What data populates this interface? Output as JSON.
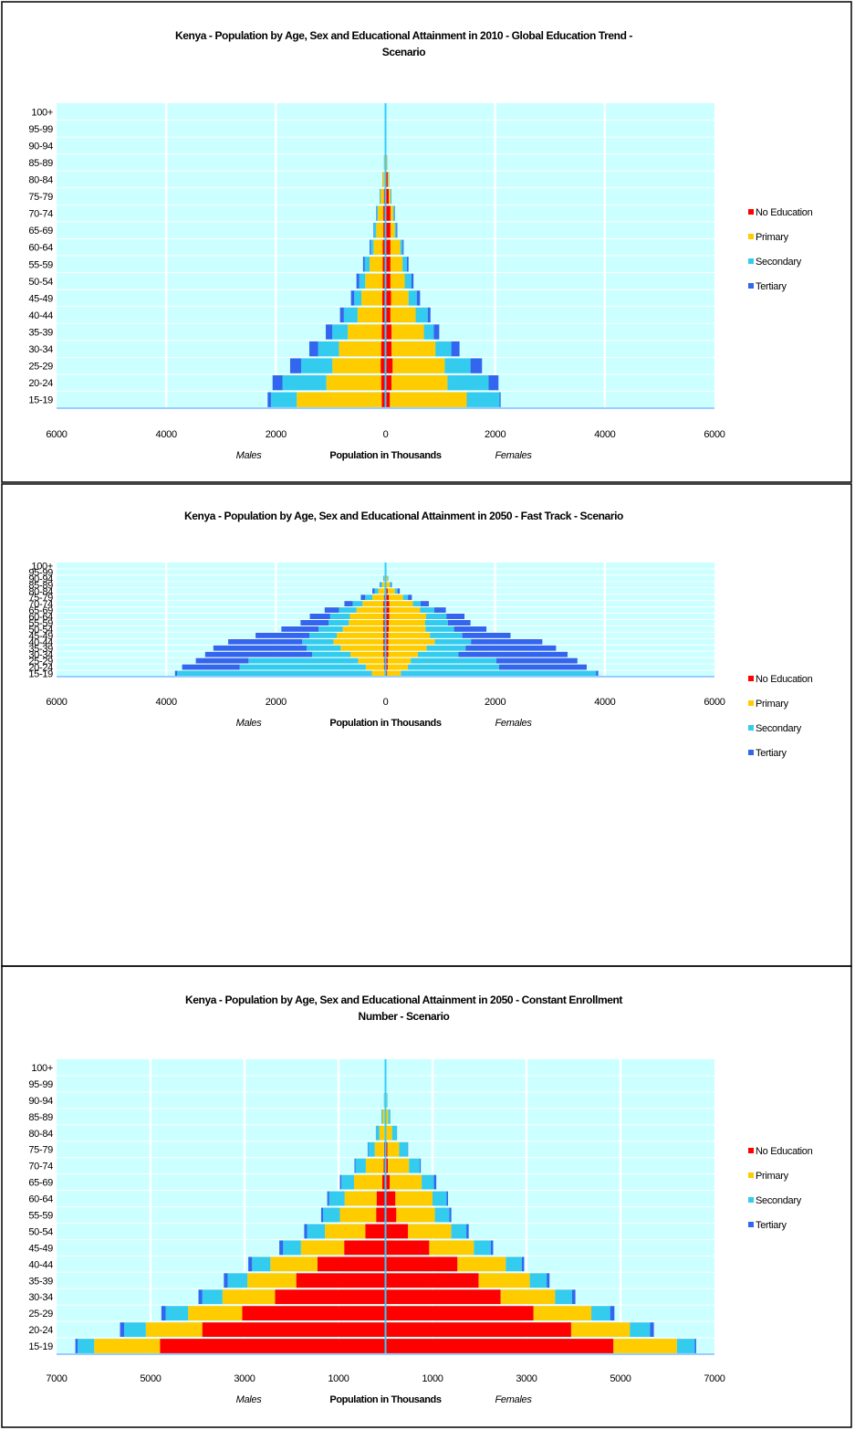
{
  "legend": [
    {
      "name": "No Education",
      "color": "#ff0000"
    },
    {
      "name": "Primary",
      "color": "#ffcc00"
    },
    {
      "name": "Secondary",
      "color": "#33ccee"
    },
    {
      "name": "Tertiary",
      "color": "#3366ee"
    }
  ],
  "chart_data": [
    {
      "type": "bar",
      "title_lines": [
        "Kenya - Population by Age, Sex and Educational Attainment  in 2010 - Global Education Trend -",
        "Scenario"
      ],
      "xlabel": "Population in Thousands",
      "left_label": "Males",
      "right_label": "Females",
      "xlim": [
        -6000,
        6000
      ],
      "xticks": [
        -6000,
        -4000,
        -2000,
        0,
        2000,
        4000,
        6000
      ],
      "xtick_labels": [
        "6000",
        "4000",
        "2000",
        "0",
        "2000",
        "4000",
        "6000"
      ],
      "categories": [
        "15-19",
        "20-24",
        "25-29",
        "30-34",
        "35-39",
        "40-44",
        "45-49",
        "50-54",
        "55-59",
        "60-64",
        "65-69",
        "70-74",
        "75-79",
        "80-84",
        "85-89",
        "90-94",
        "95-99",
        "100+"
      ],
      "males": {
        "No Education": [
          70,
          80,
          90,
          80,
          70,
          60,
          60,
          50,
          50,
          50,
          40,
          40,
          30,
          20,
          10,
          5,
          2,
          1
        ],
        "Primary": [
          1550,
          1000,
          880,
          770,
          620,
          450,
          380,
          320,
          240,
          170,
          130,
          100,
          60,
          30,
          15,
          5,
          2,
          1
        ],
        "Secondary": [
          470,
          800,
          570,
          380,
          280,
          250,
          130,
          110,
          90,
          50,
          40,
          20,
          10,
          5,
          3,
          1,
          0,
          0
        ],
        "Tertiary": [
          60,
          180,
          200,
          160,
          120,
          70,
          60,
          50,
          30,
          20,
          10,
          10,
          5,
          2,
          1,
          0,
          0,
          0
        ]
      },
      "females": {
        "No Education": [
          80,
          110,
          130,
          110,
          110,
          90,
          100,
          90,
          90,
          90,
          90,
          90,
          60,
          40,
          20,
          8,
          3,
          1
        ],
        "Primary": [
          1400,
          1020,
          950,
          800,
          590,
          460,
          320,
          260,
          220,
          180,
          80,
          50,
          30,
          20,
          10,
          5,
          2,
          1
        ],
        "Secondary": [
          600,
          750,
          470,
          290,
          180,
          220,
          150,
          120,
          80,
          40,
          30,
          20,
          10,
          5,
          3,
          1,
          0,
          0
        ],
        "Tertiary": [
          20,
          180,
          210,
          150,
          100,
          50,
          60,
          40,
          30,
          20,
          15,
          10,
          5,
          2,
          1,
          0,
          0,
          0
        ]
      }
    },
    {
      "type": "bar",
      "title_lines": [
        "Kenya - Population by Age, Sex and Educational Attainment  in 2050 - Fast Track - Scenario"
      ],
      "xlabel": "Population in Thousands",
      "left_label": "Males",
      "right_label": "Females",
      "xlim": [
        -6000,
        6000
      ],
      "xticks": [
        -6000,
        -4000,
        -2000,
        0,
        2000,
        4000,
        6000
      ],
      "xtick_labels": [
        "6000",
        "4000",
        "2000",
        "0",
        "2000",
        "4000",
        "6000"
      ],
      "categories": [
        "15-19",
        "20-24",
        "25-29",
        "30-34",
        "35-39",
        "40-44",
        "45-49",
        "50-54",
        "55-59",
        "60-64",
        "65-69",
        "70-74",
        "75-79",
        "80-84",
        "85-89",
        "90-94",
        "95-99",
        "100+"
      ],
      "males": {
        "No Education": [
          20,
          30,
          30,
          40,
          40,
          40,
          40,
          40,
          40,
          40,
          40,
          40,
          30,
          20,
          10,
          5,
          2,
          1
        ],
        "Primary": [
          230,
          330,
          470,
          600,
          780,
          910,
          850,
          740,
          630,
          610,
          490,
          380,
          210,
          110,
          50,
          20,
          8,
          2
        ],
        "Secondary": [
          3550,
          2300,
          2000,
          700,
          620,
          570,
          500,
          440,
          370,
          360,
          320,
          180,
          130,
          70,
          30,
          10,
          3,
          1
        ],
        "Tertiary": [
          40,
          1050,
          960,
          1950,
          1700,
          1350,
          980,
          680,
          510,
          370,
          260,
          150,
          80,
          40,
          15,
          5,
          2,
          0
        ]
      },
      "females": {
        "No Education": [
          30,
          40,
          40,
          50,
          50,
          50,
          50,
          60,
          60,
          70,
          70,
          70,
          60,
          40,
          20,
          8,
          3,
          1
        ],
        "Primary": [
          250,
          370,
          420,
          540,
          700,
          850,
          760,
          670,
          660,
          670,
          560,
          430,
          260,
          130,
          60,
          25,
          10,
          2
        ],
        "Secondary": [
          3560,
          1660,
          1560,
          740,
          710,
          660,
          590,
          520,
          420,
          370,
          260,
          140,
          90,
          50,
          20,
          8,
          3,
          1
        ],
        "Tertiary": [
          40,
          1600,
          1480,
          1990,
          1650,
          1300,
          880,
          590,
          410,
          330,
          210,
          150,
          70,
          40,
          15,
          5,
          2,
          0
        ]
      }
    },
    {
      "type": "bar",
      "title_lines": [
        "Kenya - Population by Age, Sex and Educational Attainment  in 2050 - Constant Enrollment",
        "Number - Scenario"
      ],
      "xlabel": "Population in Thousands",
      "left_label": "Males",
      "right_label": "Females",
      "xlim": [
        -7000,
        7000
      ],
      "xticks": [
        -7000,
        -5000,
        -3000,
        -1000,
        1000,
        3000,
        5000,
        7000
      ],
      "xtick_labels": [
        "7000",
        "5000",
        "3000",
        "1000",
        "1000",
        "3000",
        "5000",
        "7000"
      ],
      "categories": [
        "15-19",
        "20-24",
        "25-29",
        "30-34",
        "35-39",
        "40-44",
        "45-49",
        "50-54",
        "55-59",
        "60-64",
        "65-69",
        "70-74",
        "75-79",
        "80-84",
        "85-89",
        "90-94",
        "95-99",
        "100+"
      ],
      "males": {
        "No Education": [
          4800,
          3900,
          3050,
          2350,
          1900,
          1450,
          880,
          430,
          200,
          190,
          70,
          40,
          30,
          20,
          10,
          5,
          2,
          1
        ],
        "Primary": [
          1400,
          1200,
          1150,
          1120,
          1040,
          1000,
          920,
          860,
          770,
          680,
          600,
          380,
          200,
          110,
          50,
          20,
          8,
          2
        ],
        "Secondary": [
          350,
          460,
          480,
          430,
          420,
          390,
          380,
          380,
          360,
          330,
          270,
          220,
          140,
          70,
          25,
          10,
          3,
          1
        ],
        "Tertiary": [
          50,
          90,
          90,
          80,
          80,
          80,
          80,
          60,
          40,
          40,
          30,
          20,
          10,
          5,
          2,
          0,
          0,
          0
        ]
      },
      "females": {
        "No Education": [
          4850,
          3950,
          3150,
          2450,
          1980,
          1530,
          930,
          480,
          230,
          210,
          90,
          50,
          40,
          20,
          10,
          5,
          2,
          1
        ],
        "Primary": [
          1350,
          1250,
          1230,
          1160,
          1090,
          1030,
          950,
          920,
          820,
          790,
          680,
          450,
          250,
          120,
          50,
          20,
          8,
          2
        ],
        "Secondary": [
          380,
          430,
          400,
          360,
          360,
          340,
          360,
          320,
          310,
          300,
          260,
          230,
          180,
          100,
          40,
          15,
          5,
          1
        ],
        "Tertiary": [
          30,
          80,
          90,
          70,
          60,
          50,
          50,
          50,
          40,
          30,
          50,
          20,
          10,
          5,
          2,
          0,
          0,
          0
        ]
      }
    }
  ]
}
